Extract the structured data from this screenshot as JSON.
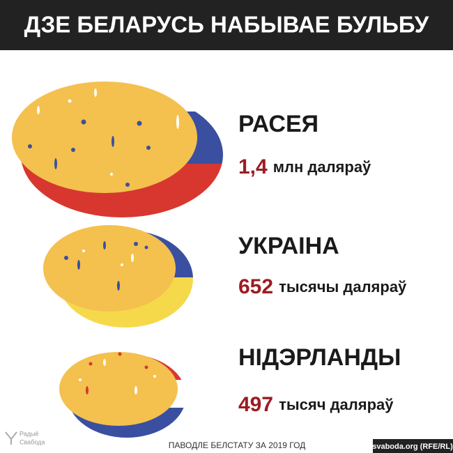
{
  "header": {
    "title": "ДЗЕ БЕЛАРУСЬ НАБЫВАЕ БУЛЬБУ"
  },
  "items": [
    {
      "country": "РАСЕЯ",
      "amount": "1,4",
      "unit": "млн даляраў"
    },
    {
      "country": "УКРАІНА",
      "amount": "652",
      "unit": "тысячы даляраў"
    },
    {
      "country": "НІДЭРЛАНДЫ",
      "amount": "497",
      "unit": "тысяч даляраў"
    }
  ],
  "source": "ПАВОДЛЕ БЕЛСТАТУ ЗА 2019 ГОД",
  "credit": "svaboda.org (RFE/RL)",
  "logo": [
    "Радыё",
    "Свабода"
  ]
}
